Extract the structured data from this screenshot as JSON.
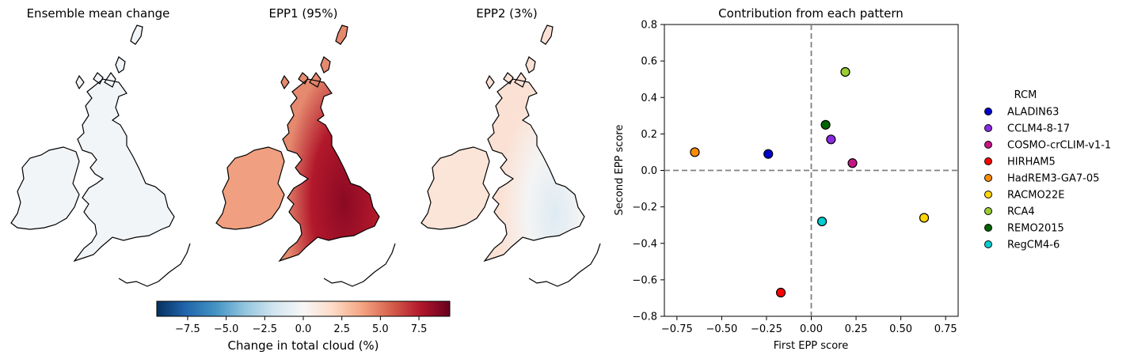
{
  "maps": [
    {
      "title": "Ensemble mean change",
      "level": 0.3
    },
    {
      "title": "EPP1 (95%)",
      "level": 7.0
    },
    {
      "title": "EPP2 (3%)",
      "level": 1.2
    }
  ],
  "colorbar": {
    "label": "Change in total cloud (%)",
    "range": [
      -9.5,
      9.5
    ],
    "ticks": [
      "−7.5",
      "−5.0",
      "−2.5",
      "0.0",
      "2.5",
      "5.0",
      "7.5"
    ],
    "tick_values": [
      -7.5,
      -5.0,
      -2.5,
      0.0,
      2.5,
      5.0,
      7.5
    ],
    "cmap": [
      "#053061",
      "#2166ac",
      "#4393c3",
      "#92c5de",
      "#d1e5f0",
      "#f7f7f7",
      "#fddbc7",
      "#f4a582",
      "#d6604d",
      "#b2182b",
      "#67001f"
    ]
  },
  "chart_data": {
    "type": "scatter",
    "title": "Contribution from each pattern",
    "xlabel": "First EPP score",
    "ylabel": "Second EPP score",
    "xlim": [
      -0.82,
      0.82
    ],
    "ylim": [
      -0.8,
      0.8
    ],
    "xticks": [
      -0.75,
      -0.5,
      -0.25,
      0.0,
      0.25,
      0.5,
      0.75
    ],
    "xtick_labels": [
      "−0.75",
      "−0.50",
      "−0.25",
      "0.00",
      "0.25",
      "0.50",
      "0.75"
    ],
    "yticks": [
      -0.8,
      -0.6,
      -0.4,
      -0.2,
      0.0,
      0.2,
      0.4,
      0.6,
      0.8
    ],
    "ytick_labels": [
      "−0.8",
      "−0.6",
      "−0.4",
      "−0.2",
      "0.0",
      "0.2",
      "0.4",
      "0.6",
      "0.8"
    ],
    "legend_title": "RCM",
    "legend_position": "right, outside",
    "series": [
      {
        "name": "ALADIN63",
        "color": "#0000cd",
        "x": -0.24,
        "y": 0.09
      },
      {
        "name": "CCLM4-8-17",
        "color": "#8a2be2",
        "x": 0.11,
        "y": 0.17
      },
      {
        "name": "COSMO-crCLIM-v1-1",
        "color": "#c71585",
        "x": 0.23,
        "y": 0.04
      },
      {
        "name": "HIRHAM5",
        "color": "#ff0000",
        "x": -0.17,
        "y": -0.67
      },
      {
        "name": "HadREM3-GA7-05",
        "color": "#ff8c00",
        "x": -0.65,
        "y": 0.1
      },
      {
        "name": "RACMO22E",
        "color": "#ffd700",
        "x": 0.63,
        "y": -0.26
      },
      {
        "name": "RCA4",
        "color": "#9acd32",
        "x": 0.19,
        "y": 0.54
      },
      {
        "name": "REMO2015",
        "color": "#006400",
        "x": 0.08,
        "y": 0.25
      },
      {
        "name": "RegCM4-6",
        "color": "#00ced1",
        "x": 0.06,
        "y": -0.28
      }
    ]
  }
}
